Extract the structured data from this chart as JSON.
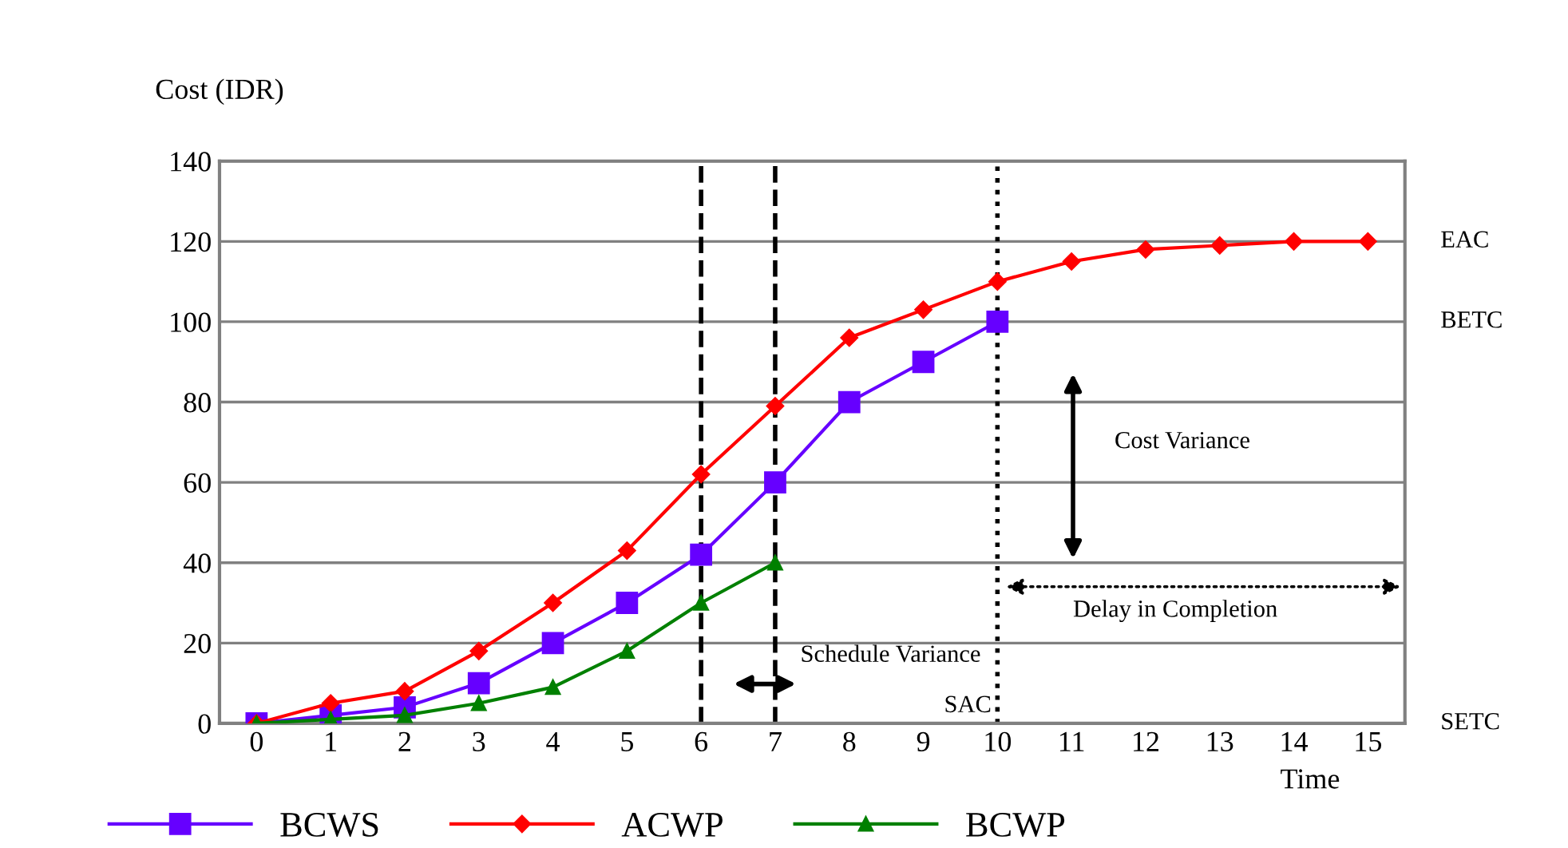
{
  "chart_data": {
    "type": "line",
    "ylabel": "Cost (IDR)",
    "xlabel": "Time",
    "xlim": [
      -0.5,
      15.5
    ],
    "xticks": [
      0,
      1,
      2,
      3,
      4,
      5,
      6,
      7,
      8,
      9,
      10,
      11,
      12,
      13,
      14,
      15
    ],
    "ylim": [
      0,
      140
    ],
    "yticks": [
      0,
      20,
      40,
      60,
      80,
      100,
      120,
      140
    ],
    "grid": "y",
    "legend": "bottom",
    "line_style": "solid",
    "series": [
      {
        "name": "BCWS",
        "color": "#6600ff",
        "marker": "square",
        "x": [
          0,
          1,
          2,
          3,
          4,
          5,
          6,
          7,
          8,
          9,
          10
        ],
        "values": [
          0,
          2,
          4,
          10,
          20,
          30,
          42,
          60,
          80,
          90,
          100
        ]
      },
      {
        "name": "ACWP",
        "color": "#ff0000",
        "marker": "diamond",
        "x": [
          0,
          1,
          2,
          3,
          4,
          5,
          6,
          7,
          8,
          9,
          10,
          11,
          12,
          13,
          14,
          15
        ],
        "values": [
          0,
          5,
          8,
          18,
          30,
          43,
          62,
          79,
          96,
          103,
          110,
          115,
          118,
          119,
          120,
          120
        ]
      },
      {
        "name": "BCWP",
        "color": "#008000",
        "marker": "triangle",
        "x": [
          0,
          1,
          2,
          3,
          4,
          5,
          6,
          7
        ],
        "values": [
          0,
          1,
          2,
          5,
          9,
          18,
          30,
          40
        ]
      }
    ],
    "ref_lines": [
      {
        "axis": "x",
        "value": 6,
        "label": null,
        "line_style": "dashed",
        "color": "#000000"
      },
      {
        "axis": "x",
        "value": 7,
        "label": null,
        "line_style": "dashed",
        "color": "#000000"
      },
      {
        "axis": "x",
        "value": 10,
        "label": "SAC",
        "line_style": "dotted",
        "color": "#000000"
      }
    ],
    "annotations": [
      "Schedule Variance",
      "Cost Variance",
      "Delay in Completion",
      "EAC",
      "BETC",
      "SETC"
    ]
  }
}
